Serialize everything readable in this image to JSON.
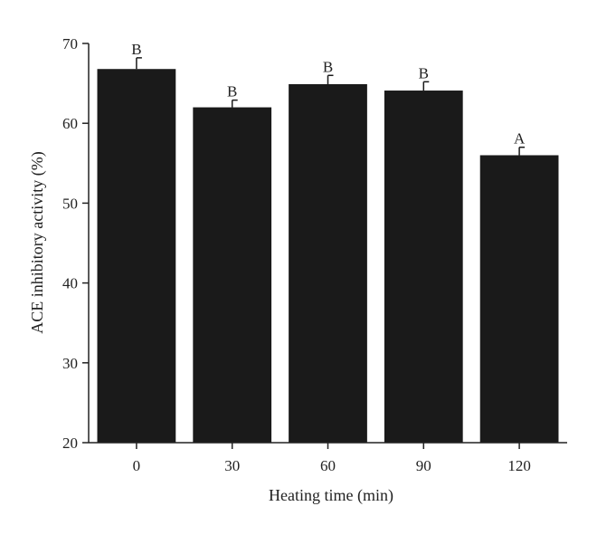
{
  "chart_data": {
    "type": "bar",
    "title": "",
    "xlabel": "Heating time (min)",
    "ylabel": "ACE inhibitory activity (%)",
    "categories": [
      "0",
      "30",
      "60",
      "90",
      "120"
    ],
    "values": [
      66.8,
      62.0,
      64.9,
      64.1,
      56.0
    ],
    "errors": [
      1.4,
      0.9,
      1.1,
      1.1,
      1.0
    ],
    "significance_labels": [
      "B",
      "B",
      "B",
      "B",
      "A"
    ],
    "ylim": [
      20,
      70
    ],
    "yticks": [
      20,
      30,
      40,
      50,
      60,
      70
    ],
    "grid": false,
    "legend": "none",
    "bar_color": "#1a1a1a"
  }
}
